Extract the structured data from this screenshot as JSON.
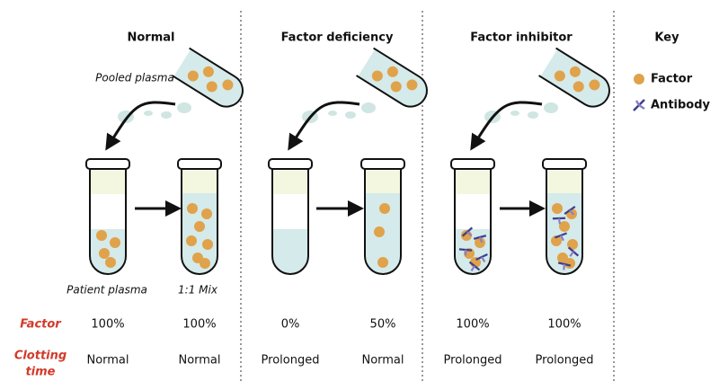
{
  "header": {
    "columns": [
      "Normal",
      "Factor deficiency",
      "Factor inhibitor",
      "Key"
    ]
  },
  "labels": {
    "pooled": "Pooled plasma",
    "patient": "Patient plasma",
    "mix": "1:1 Mix"
  },
  "key": {
    "items": [
      "Factor",
      "Antibody"
    ]
  },
  "rows": [
    {
      "label": [
        "Factor"
      ],
      "values": [
        "100%",
        "100%",
        "0%",
        "50%",
        "100%",
        "100%"
      ]
    },
    {
      "label": [
        "Clotting",
        "time"
      ],
      "values": [
        "Normal",
        "Normal",
        "Prolonged",
        "Normal",
        "Prolonged",
        "Prolonged"
      ]
    }
  ]
}
